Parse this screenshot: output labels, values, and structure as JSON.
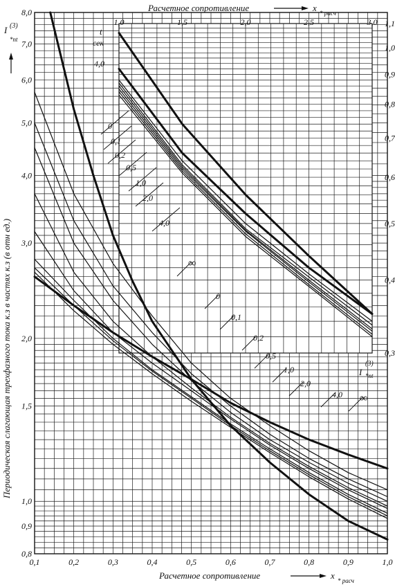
{
  "chart_data": {
    "type": "line",
    "left_axis": {
      "title": "Периодическая слагающая трехфазного тока к.з в частях к.з (в отн ед.)",
      "symbol": "I",
      "symbol_sup": "(3)",
      "symbol_sub": "*nt",
      "scale": "log",
      "ylim": [
        0.8,
        8.0
      ],
      "ticks": [
        "0,8",
        "0,9",
        "1,0",
        "1,5",
        "2,0",
        "3,0",
        "4,0",
        "5,0",
        "6,0",
        "7,0",
        "8,0"
      ]
    },
    "right_axis": {
      "symbol": "I",
      "symbol_sup": "(3)",
      "symbol_sub": "*nt",
      "scale": "log",
      "ylim": [
        0.3,
        1.1
      ],
      "ticks": [
        "0,3",
        "0,4",
        "0,5",
        "0,6",
        "0,7",
        "0,8",
        "0,9",
        "1,0",
        "1,1"
      ]
    },
    "bottom_axis": {
      "title": "Расчетное сопротивление",
      "symbol": "x",
      "symbol_sub": "* расч",
      "xlim": [
        0.1,
        1.0
      ],
      "ticks": [
        "0,1",
        "0,2",
        "0,3",
        "0,4",
        "0,5",
        "0,6",
        "0,7",
        "0,8",
        "0,9",
        "1,0"
      ]
    },
    "top_axis": {
      "title": "Расчетное сопротивление",
      "symbol": "x",
      "symbol_sub": "* расч",
      "xlim": [
        1.0,
        3.0
      ],
      "ticks": [
        "1,0",
        "1,5",
        "2,0",
        "2,5",
        "3,0"
      ]
    },
    "time_header": [
      "t",
      "сек"
    ],
    "lower_family": {
      "axes": "bottom-left",
      "series": [
        {
          "name": "0",
          "x": [
            0.1,
            0.2,
            0.3,
            0.4,
            0.5,
            0.6,
            0.7,
            0.8,
            0.9,
            1.0
          ],
          "y": [
            5.7,
            3.7,
            2.75,
            2.2,
            1.8,
            1.55,
            1.38,
            1.24,
            1.13,
            1.05
          ]
        },
        {
          "name": "0,1",
          "x": [
            0.1,
            0.2,
            0.3,
            0.4,
            0.5,
            0.6,
            0.7,
            0.8,
            0.9,
            1.0
          ],
          "y": [
            5.0,
            3.3,
            2.5,
            2.05,
            1.72,
            1.5,
            1.33,
            1.2,
            1.1,
            1.02
          ]
        },
        {
          "name": "0,2",
          "x": [
            0.1,
            0.2,
            0.3,
            0.4,
            0.5,
            0.6,
            0.7,
            0.8,
            0.9,
            1.0
          ],
          "y": [
            4.5,
            3.0,
            2.35,
            1.95,
            1.67,
            1.46,
            1.3,
            1.18,
            1.08,
            1.0
          ]
        },
        {
          "name": "0,5",
          "x": [
            0.1,
            0.2,
            0.3,
            0.4,
            0.5,
            0.6,
            0.7,
            0.8,
            0.9,
            1.0
          ],
          "y": [
            3.7,
            2.65,
            2.15,
            1.85,
            1.62,
            1.43,
            1.28,
            1.16,
            1.06,
            0.98
          ]
        },
        {
          "name": "1,0",
          "x": [
            0.1,
            0.2,
            0.3,
            0.4,
            0.5,
            0.6,
            0.7,
            0.8,
            0.9,
            1.0
          ],
          "y": [
            3.15,
            2.45,
            2.05,
            1.8,
            1.6,
            1.42,
            1.27,
            1.15,
            1.05,
            0.97
          ]
        },
        {
          "name": "2,0",
          "x": [
            0.1,
            0.2,
            0.3,
            0.4,
            0.5,
            0.6,
            0.7,
            0.8,
            0.9,
            1.0
          ],
          "y": [
            2.8,
            2.35,
            2.0,
            1.75,
            1.56,
            1.39,
            1.25,
            1.13,
            1.03,
            0.95
          ]
        },
        {
          "name": "4,0",
          "x": [
            0.1,
            0.2,
            0.3,
            0.4,
            0.5,
            0.6,
            0.7,
            0.8,
            0.9,
            1.0
          ],
          "y": [
            2.7,
            2.3,
            1.98,
            1.74,
            1.55,
            1.38,
            1.24,
            1.12,
            1.02,
            0.94
          ]
        },
        {
          "name": "∞",
          "x": [
            0.1,
            0.2,
            0.3,
            0.4,
            0.5,
            0.6,
            0.7,
            0.8,
            0.9,
            1.0
          ],
          "y": [
            2.65,
            2.25,
            1.95,
            1.72,
            1.53,
            1.37,
            1.23,
            1.11,
            1.01,
            0.93
          ]
        }
      ],
      "bold_overlays": [
        {
          "x": [
            0.14,
            0.2,
            0.25,
            0.3,
            0.35,
            0.4,
            0.5,
            0.6,
            0.7,
            0.8,
            0.9,
            1.0
          ],
          "y": [
            8.0,
            5.3,
            4.0,
            3.1,
            2.55,
            2.15,
            1.68,
            1.38,
            1.18,
            1.03,
            0.92,
            0.85
          ]
        },
        {
          "x": [
            0.1,
            0.2,
            0.3,
            0.4,
            0.5,
            0.6,
            0.7,
            0.8,
            0.9,
            1.0
          ],
          "y": [
            2.6,
            2.3,
            2.05,
            1.85,
            1.68,
            1.52,
            1.4,
            1.3,
            1.22,
            1.15
          ]
        }
      ]
    },
    "upper_family": {
      "axes": "top-right",
      "series": [
        {
          "name": "0",
          "x": [
            1.0,
            1.5,
            2.0,
            2.5,
            3.0
          ],
          "y": [
            0.88,
            0.64,
            0.5,
            0.41,
            0.34
          ]
        },
        {
          "name": "0,1",
          "x": [
            1.0,
            1.5,
            2.0,
            2.5,
            3.0
          ],
          "y": [
            0.87,
            0.63,
            0.49,
            0.405,
            0.335
          ]
        },
        {
          "name": "0,2",
          "x": [
            1.0,
            1.5,
            2.0,
            2.5,
            3.0
          ],
          "y": [
            0.86,
            0.625,
            0.487,
            0.4,
            0.33
          ]
        },
        {
          "name": "0,5",
          "x": [
            1.0,
            1.5,
            2.0,
            2.5,
            3.0
          ],
          "y": [
            0.85,
            0.62,
            0.485,
            0.397,
            0.327
          ]
        },
        {
          "name": "1,0",
          "x": [
            1.0,
            1.5,
            2.0,
            2.5,
            3.0
          ],
          "y": [
            0.84,
            0.615,
            0.48,
            0.393,
            0.323
          ]
        },
        {
          "name": "2,0",
          "x": [
            1.0,
            1.5,
            2.0,
            2.5,
            3.0
          ],
          "y": [
            0.83,
            0.61,
            0.475,
            0.39,
            0.32
          ]
        },
        {
          "name": "4,0",
          "x": [
            1.0,
            1.5,
            2.0,
            2.5,
            3.0
          ],
          "y": [
            1.06,
            0.74,
            0.56,
            0.44,
            0.35
          ]
        }
      ],
      "bold_overlays": [
        {
          "x": [
            1.0,
            1.5,
            2.0,
            2.5,
            3.0
          ],
          "y": [
            0.92,
            0.66,
            0.52,
            0.42,
            0.35
          ]
        }
      ]
    },
    "time_labels_lower": [
      "∞",
      "0",
      "0,1",
      "0,2",
      "0,5",
      "1,0",
      "2,0",
      "4,0",
      "∞"
    ],
    "time_labels_upper": [
      "4,0",
      "0",
      "0,1",
      "0,2",
      "0,5",
      "1,0",
      "2,0",
      "4,0"
    ],
    "grid": true
  }
}
